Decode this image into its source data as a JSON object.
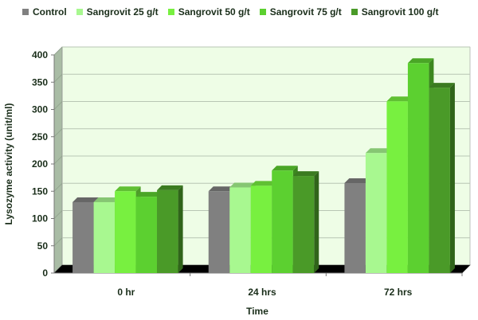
{
  "chart_data": {
    "type": "bar",
    "style": "3d-clustered-column",
    "title": "",
    "xlabel": "Time",
    "ylabel": "Lysozyme activity (unit/ml)",
    "ylim": [
      0,
      400
    ],
    "yticks": [
      0,
      50,
      100,
      150,
      200,
      250,
      300,
      350,
      400
    ],
    "grid": true,
    "legend_position": "top",
    "categories": [
      "0 hr",
      "24 hrs",
      "72 hrs"
    ],
    "series": [
      {
        "name": "Control",
        "color": "#808080",
        "values": [
          130,
          150,
          165
        ]
      },
      {
        "name": "Sangrovit 25 g/t",
        "color": "#a8f890",
        "values": [
          130,
          157,
          220
        ]
      },
      {
        "name": "Sangrovit 50 g/t",
        "color": "#78f040",
        "values": [
          150,
          160,
          315
        ]
      },
      {
        "name": "Sangrovit 75 g/t",
        "color": "#5cd030",
        "values": [
          140,
          188,
          385
        ]
      },
      {
        "name": "Sangrovit 100 g/t",
        "color": "#4a9a28",
        "values": [
          152,
          178,
          340
        ]
      }
    ]
  }
}
